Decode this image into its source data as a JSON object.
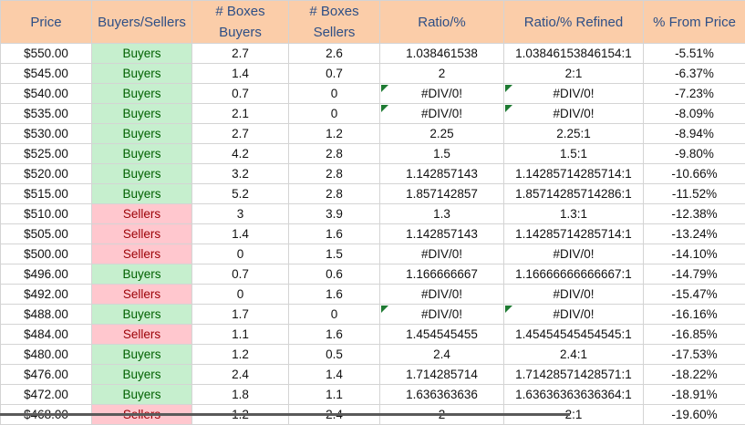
{
  "table": {
    "header": [
      "Price",
      "Buyers/Sellers",
      "# Boxes Buyers",
      "# Boxes Sellers",
      "Ratio/%",
      "Ratio/% Refined",
      "% From Price"
    ],
    "rows": [
      [
        "$550.00",
        "Buyers",
        "2.7",
        "2.6",
        "1.038461538",
        "1.03846153846154:1",
        "-5.51%"
      ],
      [
        "$545.00",
        "Buyers",
        "1.4",
        "0.7",
        "2",
        "2:1",
        "-6.37%"
      ],
      [
        "$540.00",
        "Buyers",
        "0.7",
        "0",
        "#DIV/0!",
        "#DIV/0!",
        "-7.23%"
      ],
      [
        "$535.00",
        "Buyers",
        "2.1",
        "0",
        "#DIV/0!",
        "#DIV/0!",
        "-8.09%"
      ],
      [
        "$530.00",
        "Buyers",
        "2.7",
        "1.2",
        "2.25",
        "2.25:1",
        "-8.94%"
      ],
      [
        "$525.00",
        "Buyers",
        "4.2",
        "2.8",
        "1.5",
        "1.5:1",
        "-9.80%"
      ],
      [
        "$520.00",
        "Buyers",
        "3.2",
        "2.8",
        "1.142857143",
        "1.14285714285714:1",
        "-10.66%"
      ],
      [
        "$515.00",
        "Buyers",
        "5.2",
        "2.8",
        "1.857142857",
        "1.85714285714286:1",
        "-11.52%"
      ],
      [
        "$510.00",
        "Sellers",
        "3",
        "3.9",
        "1.3",
        "1.3:1",
        "-12.38%"
      ],
      [
        "$505.00",
        "Sellers",
        "1.4",
        "1.6",
        "1.142857143",
        "1.14285714285714:1",
        "-13.24%"
      ],
      [
        "$500.00",
        "Sellers",
        "0",
        "1.5",
        "#DIV/0!",
        "#DIV/0!",
        "-14.10%"
      ],
      [
        "$496.00",
        "Buyers",
        "0.7",
        "0.6",
        "1.166666667",
        "1.16666666666667:1",
        "-14.79%"
      ],
      [
        "$492.00",
        "Sellers",
        "0",
        "1.6",
        "#DIV/0!",
        "#DIV/0!",
        "-15.47%"
      ],
      [
        "$488.00",
        "Buyers",
        "1.7",
        "0",
        "#DIV/0!",
        "#DIV/0!",
        "-16.16%"
      ],
      [
        "$484.00",
        "Sellers",
        "1.1",
        "1.6",
        "1.454545455",
        "1.45454545454545:1",
        "-16.85%"
      ],
      [
        "$480.00",
        "Buyers",
        "1.2",
        "0.5",
        "2.4",
        "2.4:1",
        "-17.53%"
      ],
      [
        "$476.00",
        "Buyers",
        "2.4",
        "1.4",
        "1.714285714",
        "1.71428571428571:1",
        "-18.22%"
      ],
      [
        "$472.00",
        "Buyers",
        "1.8",
        "1.1",
        "1.636363636",
        "1.63636363636364:1",
        "-18.91%"
      ],
      [
        "$468.00",
        "Sellers",
        "1.2",
        "2.4",
        "2",
        "2:1",
        "-19.60%"
      ]
    ]
  }
}
